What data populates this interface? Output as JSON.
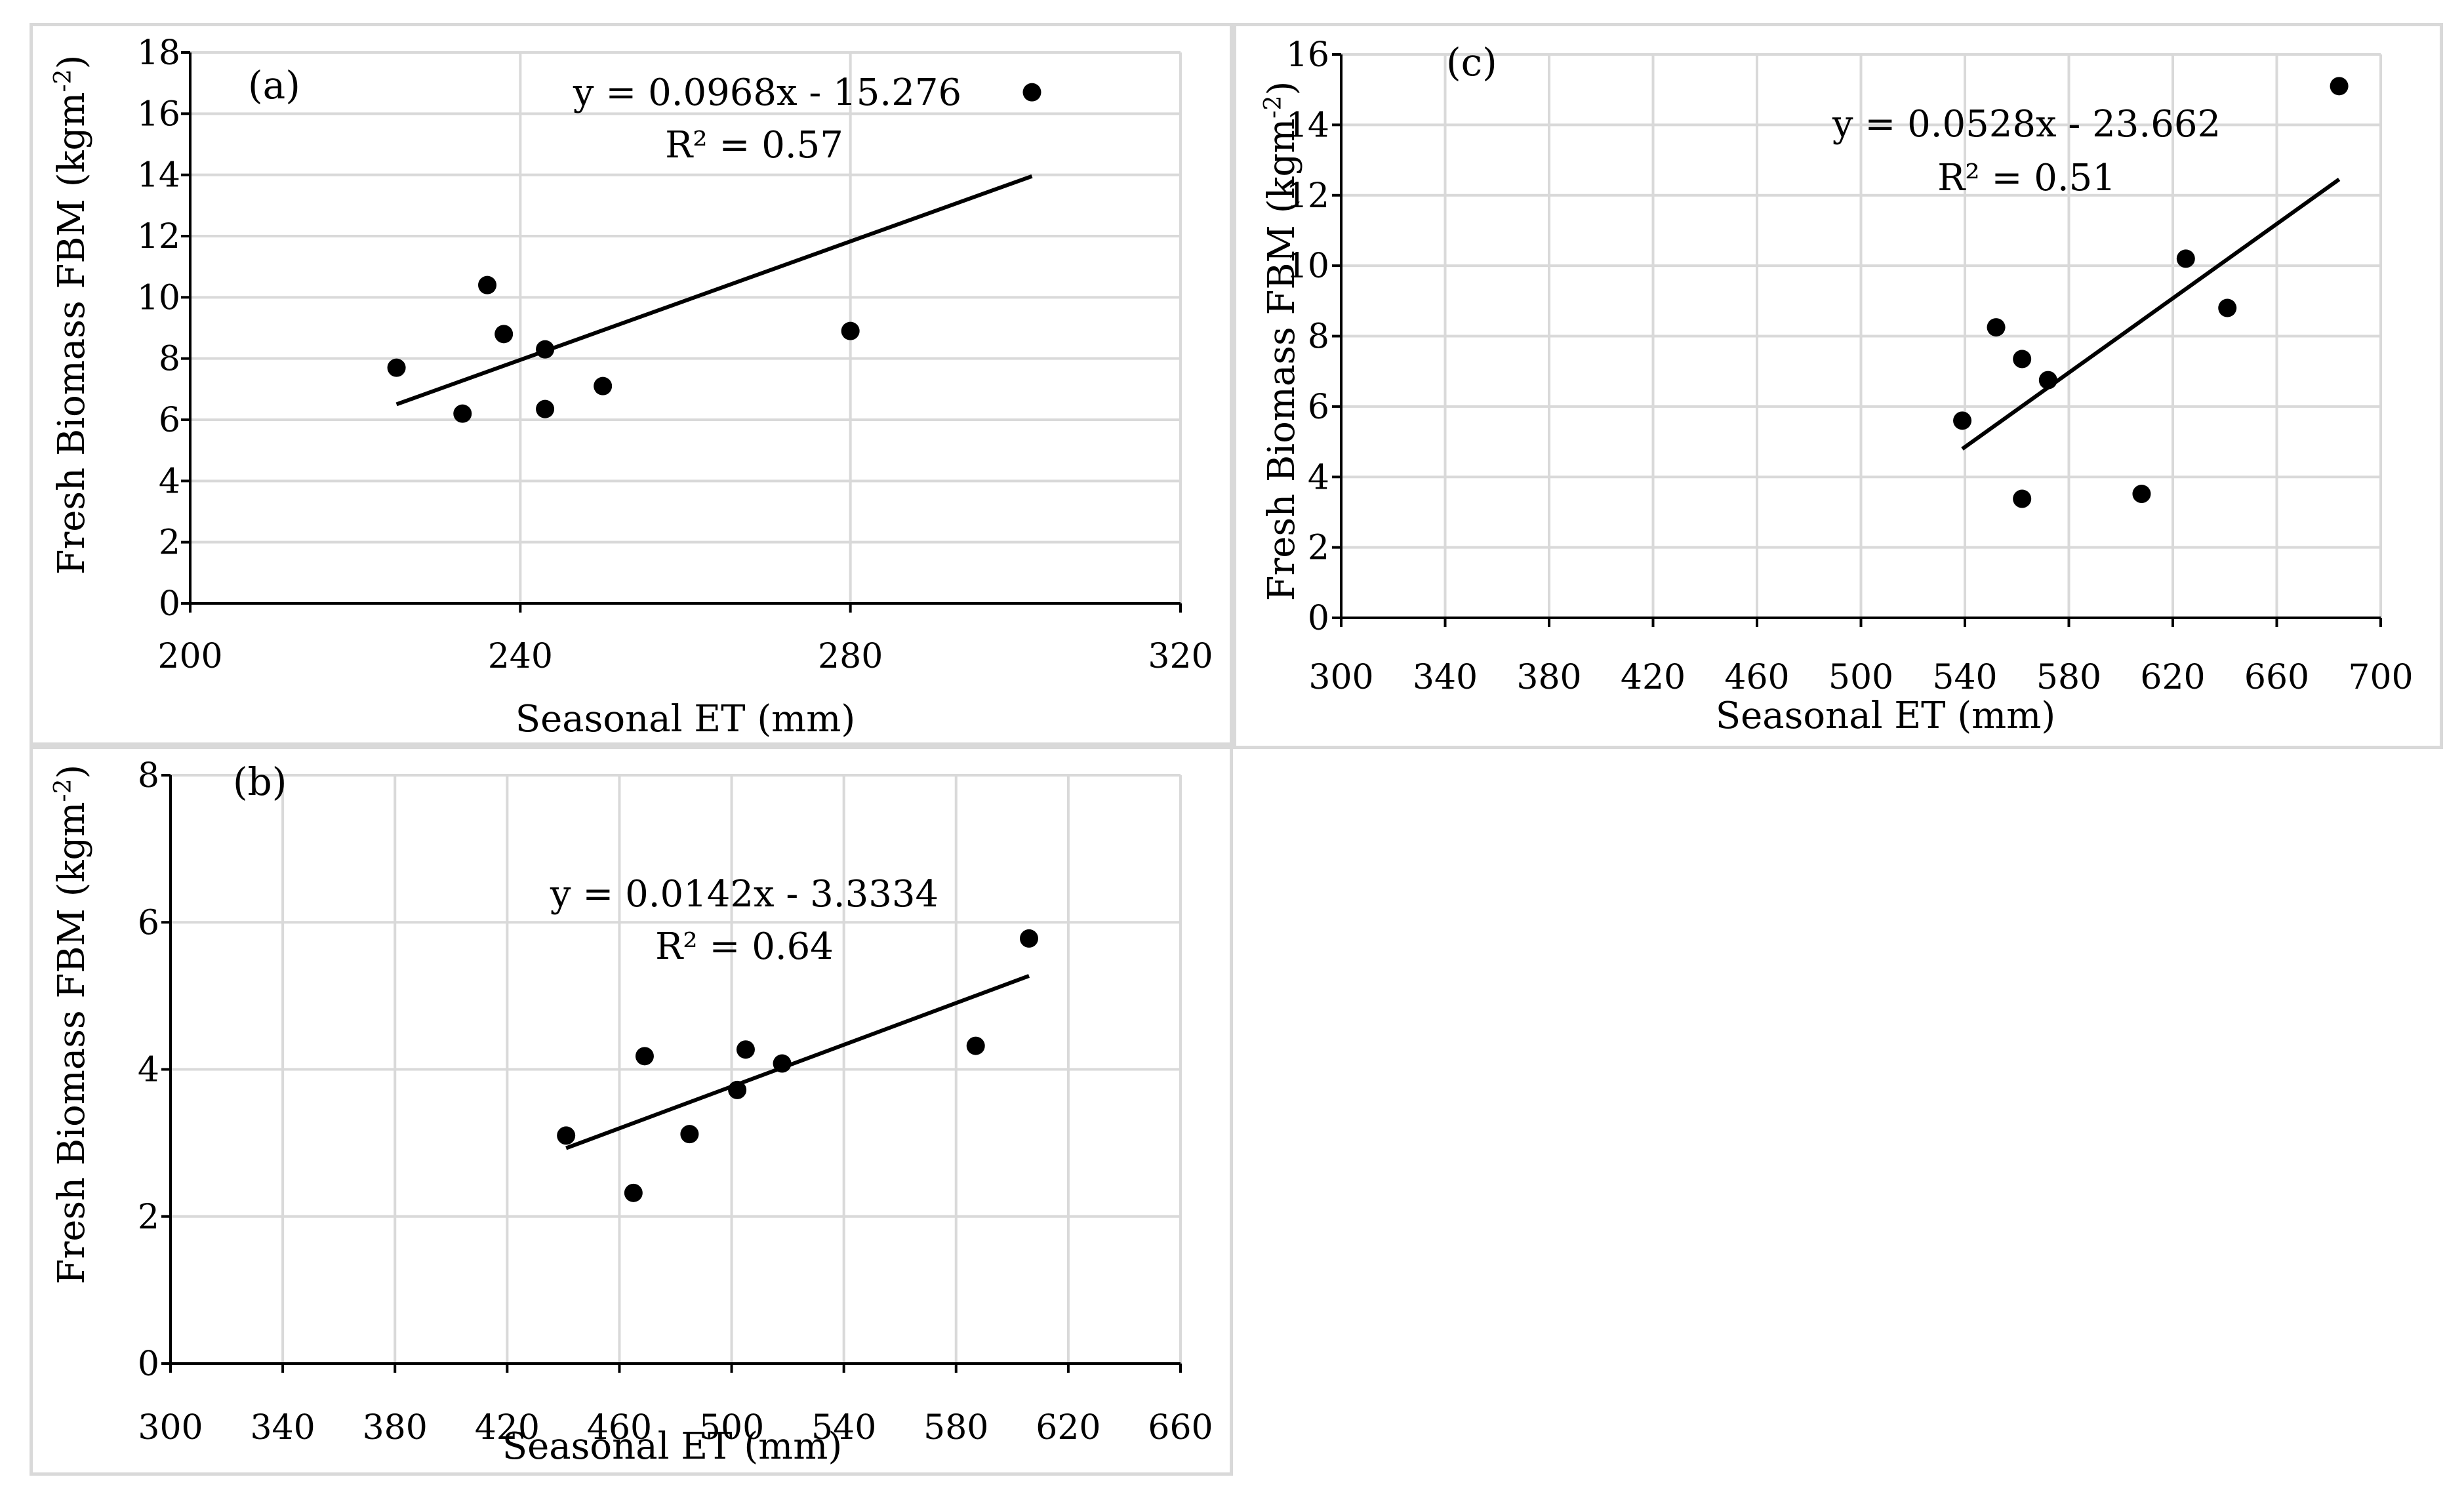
{
  "chart_data": [
    {
      "id": "a",
      "type": "scatter",
      "panel_label": "(a)",
      "xlabel": "Seasonal ET (mm)",
      "ylabel_main": "Fresh Biomass FBM (kgm",
      "ylabel_sup": "-2",
      "ylabel_end": ")",
      "xlim": [
        200,
        320
      ],
      "ylim": [
        0,
        18
      ],
      "xticks": [
        200,
        240,
        280,
        320
      ],
      "yticks": [
        0,
        2,
        4,
        6,
        8,
        10,
        12,
        14,
        16,
        18
      ],
      "vgrid": [
        200,
        240,
        280,
        320
      ],
      "points": [
        {
          "x": 225,
          "y": 7.7
        },
        {
          "x": 233,
          "y": 6.2
        },
        {
          "x": 236,
          "y": 10.4
        },
        {
          "x": 238,
          "y": 8.8
        },
        {
          "x": 243,
          "y": 8.3
        },
        {
          "x": 243,
          "y": 6.35
        },
        {
          "x": 250,
          "y": 7.1
        },
        {
          "x": 280,
          "y": 8.9
        },
        {
          "x": 302,
          "y": 16.7
        }
      ],
      "trendline": {
        "slope": 0.0968,
        "intercept": -15.276,
        "x_range": [
          225,
          302
        ]
      },
      "equation": "y = 0.0968x - 15.276",
      "r2": "R² = 0.57"
    },
    {
      "id": "b",
      "type": "scatter",
      "panel_label": "(b)",
      "xlabel": "Seasonal ET (mm)",
      "ylabel_main": "Fresh Biomass FBM (kgm",
      "ylabel_sup": "-2",
      "ylabel_end": ")",
      "xlim": [
        300,
        660
      ],
      "ylim": [
        0,
        8
      ],
      "xticks": [
        300,
        340,
        380,
        420,
        460,
        500,
        540,
        580,
        620,
        660
      ],
      "yticks": [
        0,
        2,
        4,
        6,
        8
      ],
      "vgrid": [
        340,
        380,
        420,
        460,
        500,
        540,
        580,
        620,
        660
      ],
      "points": [
        {
          "x": 441,
          "y": 3.1
        },
        {
          "x": 465,
          "y": 2.32
        },
        {
          "x": 469,
          "y": 4.18
        },
        {
          "x": 485,
          "y": 3.12
        },
        {
          "x": 502,
          "y": 3.72
        },
        {
          "x": 505,
          "y": 4.27
        },
        {
          "x": 518,
          "y": 4.08
        },
        {
          "x": 587,
          "y": 4.32
        },
        {
          "x": 606,
          "y": 5.78
        }
      ],
      "trendline": {
        "slope": 0.0142,
        "intercept": -3.3334,
        "x_range": [
          441,
          606
        ]
      },
      "equation": "y = 0.0142x - 3.3334",
      "r2": "R² = 0.64"
    },
    {
      "id": "c",
      "type": "scatter",
      "panel_label": "(c)",
      "xlabel": "Seasonal ET (mm)",
      "ylabel_main": "Fresh Biomass FBM (kgm",
      "ylabel_sup": "-2",
      "ylabel_end": ")",
      "xlim": [
        300,
        700
      ],
      "ylim": [
        0,
        16
      ],
      "xticks": [
        300,
        340,
        380,
        420,
        460,
        500,
        540,
        580,
        620,
        660,
        700
      ],
      "yticks": [
        0,
        2,
        4,
        6,
        8,
        10,
        12,
        14,
        16
      ],
      "vgrid": [
        340,
        380,
        420,
        460,
        500,
        540,
        580,
        620,
        660,
        700
      ],
      "points": [
        {
          "x": 539,
          "y": 5.6
        },
        {
          "x": 552,
          "y": 8.25
        },
        {
          "x": 562,
          "y": 7.35
        },
        {
          "x": 562,
          "y": 3.38
        },
        {
          "x": 572,
          "y": 6.75
        },
        {
          "x": 608,
          "y": 3.52
        },
        {
          "x": 625,
          "y": 10.2
        },
        {
          "x": 641,
          "y": 8.8
        },
        {
          "x": 684,
          "y": 15.1
        }
      ],
      "trendline": {
        "slope": 0.0528,
        "intercept": -23.662,
        "x_range": [
          539,
          684
        ]
      },
      "equation": "y = 0.0528x - 23.662",
      "r2": "R² = 0.51"
    }
  ]
}
